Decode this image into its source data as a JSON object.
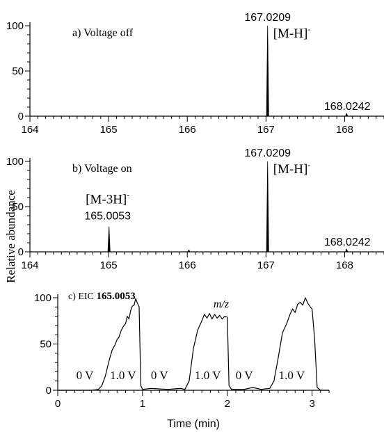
{
  "figure": {
    "ylabel": "Relative abundance",
    "xlabel_mz": "m/z",
    "xlabel_time": "Time (min)"
  },
  "chart_data": [
    {
      "type": "line",
      "subtype": "mass-spectrum",
      "panel_label": "a) Voltage off",
      "xlim": [
        164,
        168.5
      ],
      "ylim": [
        0,
        100
      ],
      "xticks": [
        164,
        165,
        166,
        167,
        168
      ],
      "yticks": [
        0,
        50,
        100
      ],
      "peaks": [
        {
          "x": 167.0209,
          "y": 100,
          "mass_label": "167.0209",
          "ion_label": "[M-H]",
          "ion_charge": "-"
        },
        {
          "x": 168.0242,
          "y": 3,
          "mass_label": "168.0242"
        }
      ]
    },
    {
      "type": "line",
      "subtype": "mass-spectrum",
      "panel_label": "b) Voltage on",
      "xlim": [
        164,
        168.5
      ],
      "ylim": [
        0,
        100
      ],
      "xticks": [
        164,
        165,
        166,
        167,
        168
      ],
      "yticks": [
        0,
        50,
        100
      ],
      "peaks": [
        {
          "x": 165.0053,
          "y": 28,
          "mass_label": "165.0053",
          "ion_label": "[M-3H]",
          "ion_charge": "-"
        },
        {
          "x": 166.02,
          "y": 2
        },
        {
          "x": 167.0209,
          "y": 100,
          "mass_label": "167.0209",
          "ion_label": "[M-H]",
          "ion_charge": "-"
        },
        {
          "x": 168.0242,
          "y": 3,
          "mass_label": "168.0242"
        }
      ]
    },
    {
      "type": "line",
      "subtype": "extracted-ion-chromatogram",
      "panel_label": "c) EIC",
      "panel_mass": "165.0053",
      "xlim": [
        0,
        3.2
      ],
      "ylim": [
        0,
        100
      ],
      "xticks": [
        0,
        1,
        2,
        3
      ],
      "yticks": [
        0,
        50,
        100
      ],
      "voltage_labels": [
        {
          "text": "0 V",
          "x": 0.32
        },
        {
          "text": "1.0 V",
          "x": 0.77
        },
        {
          "text": "0 V",
          "x": 1.2
        },
        {
          "text": "1.0 V",
          "x": 1.77
        },
        {
          "text": "0 V",
          "x": 2.2
        },
        {
          "text": "1.0 V",
          "x": 2.76
        }
      ],
      "trace": [
        [
          0.0,
          0
        ],
        [
          0.4,
          0
        ],
        [
          0.48,
          1
        ],
        [
          0.52,
          5
        ],
        [
          0.56,
          15
        ],
        [
          0.6,
          30
        ],
        [
          0.64,
          43
        ],
        [
          0.68,
          50
        ],
        [
          0.7,
          55
        ],
        [
          0.72,
          57
        ],
        [
          0.75,
          65
        ],
        [
          0.78,
          70
        ],
        [
          0.8,
          72
        ],
        [
          0.82,
          80
        ],
        [
          0.84,
          77
        ],
        [
          0.86,
          86
        ],
        [
          0.88,
          91
        ],
        [
          0.9,
          92
        ],
        [
          0.92,
          99
        ],
        [
          0.94,
          94
        ],
        [
          0.96,
          90
        ],
        [
          0.98,
          5
        ],
        [
          1.0,
          1
        ],
        [
          1.1,
          2
        ],
        [
          1.3,
          1
        ],
        [
          1.45,
          2
        ],
        [
          1.5,
          1
        ],
        [
          1.55,
          10
        ],
        [
          1.6,
          45
        ],
        [
          1.65,
          65
        ],
        [
          1.7,
          75
        ],
        [
          1.73,
          82
        ],
        [
          1.76,
          78
        ],
        [
          1.79,
          83
        ],
        [
          1.82,
          77
        ],
        [
          1.85,
          82
        ],
        [
          1.88,
          78
        ],
        [
          1.91,
          81
        ],
        [
          1.94,
          77
        ],
        [
          1.97,
          80
        ],
        [
          2.0,
          79
        ],
        [
          2.02,
          5
        ],
        [
          2.05,
          1
        ],
        [
          2.2,
          1
        ],
        [
          2.3,
          3
        ],
        [
          2.4,
          1
        ],
        [
          2.5,
          2
        ],
        [
          2.55,
          10
        ],
        [
          2.6,
          35
        ],
        [
          2.65,
          62
        ],
        [
          2.7,
          72
        ],
        [
          2.74,
          82
        ],
        [
          2.77,
          88
        ],
        [
          2.8,
          84
        ],
        [
          2.83,
          93
        ],
        [
          2.86,
          95
        ],
        [
          2.89,
          92
        ],
        [
          2.92,
          100
        ],
        [
          2.95,
          94
        ],
        [
          2.98,
          90
        ],
        [
          3.0,
          88
        ],
        [
          3.03,
          55
        ],
        [
          3.06,
          3
        ],
        [
          3.1,
          0
        ],
        [
          3.2,
          0
        ]
      ]
    }
  ]
}
